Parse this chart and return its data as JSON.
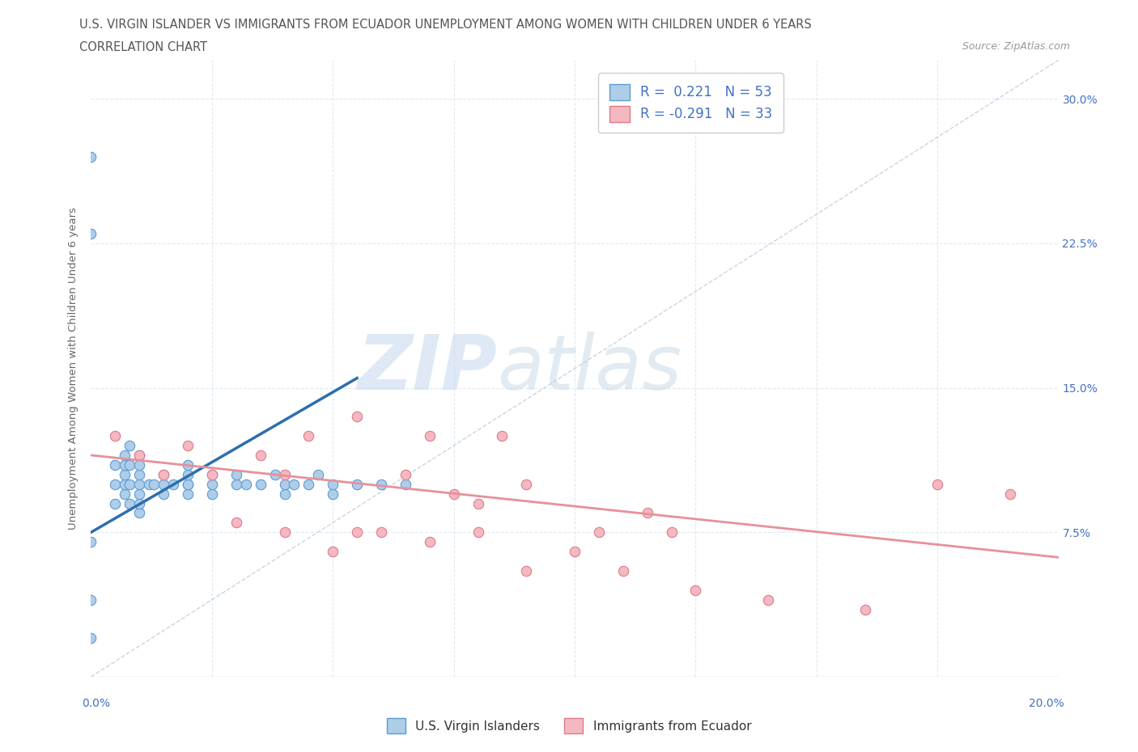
{
  "title_line1": "U.S. VIRGIN ISLANDER VS IMMIGRANTS FROM ECUADOR UNEMPLOYMENT AMONG WOMEN WITH CHILDREN UNDER 6 YEARS",
  "title_line2": "CORRELATION CHART",
  "source": "Source: ZipAtlas.com",
  "ylabel": "Unemployment Among Women with Children Under 6 years",
  "xlim": [
    0.0,
    0.2
  ],
  "ylim": [
    0.0,
    0.32
  ],
  "R_blue": 0.221,
  "N_blue": 53,
  "R_pink": -0.291,
  "N_pink": 33,
  "color_blue_fill": "#aecde8",
  "color_blue_edge": "#5b9bd5",
  "color_blue_line": "#2c6fad",
  "color_pink_fill": "#f4b8c1",
  "color_pink_edge": "#e07a8a",
  "color_pink_line": "#e8909a",
  "color_diag": "#b0c4d8",
  "legend_label_blue": "U.S. Virgin Islanders",
  "legend_label_pink": "Immigrants from Ecuador",
  "watermark_zip": "ZIP",
  "watermark_atlas": "atlas",
  "blue_scatter_x": [
    0.0,
    0.0,
    0.0,
    0.0,
    0.0,
    0.005,
    0.005,
    0.005,
    0.007,
    0.007,
    0.007,
    0.007,
    0.007,
    0.008,
    0.008,
    0.008,
    0.008,
    0.01,
    0.01,
    0.01,
    0.01,
    0.01,
    0.01,
    0.01,
    0.012,
    0.013,
    0.015,
    0.015,
    0.015,
    0.017,
    0.02,
    0.02,
    0.02,
    0.02,
    0.02,
    0.025,
    0.025,
    0.025,
    0.03,
    0.03,
    0.032,
    0.035,
    0.038,
    0.04,
    0.04,
    0.042,
    0.045,
    0.047,
    0.05,
    0.05,
    0.055,
    0.06,
    0.065
  ],
  "blue_scatter_y": [
    0.02,
    0.04,
    0.07,
    0.27,
    0.23,
    0.09,
    0.1,
    0.11,
    0.095,
    0.1,
    0.105,
    0.11,
    0.115,
    0.09,
    0.1,
    0.11,
    0.12,
    0.085,
    0.09,
    0.095,
    0.1,
    0.105,
    0.11,
    0.115,
    0.1,
    0.1,
    0.095,
    0.1,
    0.105,
    0.1,
    0.095,
    0.1,
    0.1,
    0.105,
    0.11,
    0.095,
    0.1,
    0.105,
    0.1,
    0.105,
    0.1,
    0.1,
    0.105,
    0.095,
    0.1,
    0.1,
    0.1,
    0.105,
    0.095,
    0.1,
    0.1,
    0.1,
    0.1
  ],
  "pink_scatter_x": [
    0.005,
    0.01,
    0.015,
    0.02,
    0.025,
    0.03,
    0.035,
    0.04,
    0.04,
    0.045,
    0.05,
    0.055,
    0.055,
    0.06,
    0.065,
    0.07,
    0.07,
    0.075,
    0.08,
    0.08,
    0.085,
    0.09,
    0.09,
    0.1,
    0.105,
    0.11,
    0.115,
    0.12,
    0.125,
    0.14,
    0.16,
    0.175,
    0.19
  ],
  "pink_scatter_y": [
    0.125,
    0.115,
    0.105,
    0.12,
    0.105,
    0.08,
    0.115,
    0.075,
    0.105,
    0.125,
    0.065,
    0.075,
    0.135,
    0.075,
    0.105,
    0.125,
    0.07,
    0.095,
    0.075,
    0.09,
    0.125,
    0.1,
    0.055,
    0.065,
    0.075,
    0.055,
    0.085,
    0.075,
    0.045,
    0.04,
    0.035,
    0.1,
    0.095
  ],
  "blue_line_x": [
    0.0,
    0.055
  ],
  "blue_line_y": [
    0.075,
    0.155
  ],
  "pink_line_x": [
    0.0,
    0.2
  ],
  "pink_line_y": [
    0.115,
    0.062
  ],
  "title_fontsize": 10.5,
  "axis_label_fontsize": 9.5,
  "tick_fontsize": 10,
  "legend_fontsize": 12,
  "background_color": "#ffffff",
  "grid_color": "#dde8f0"
}
